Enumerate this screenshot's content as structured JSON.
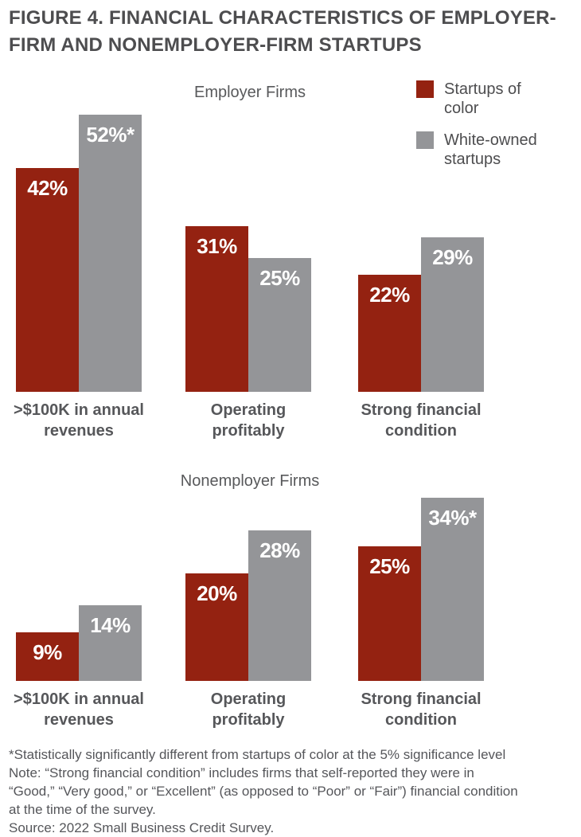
{
  "figure_title": "FIGURE 4. FINANCIAL CHARACTERISTICS OF EMPLOYER-FIRM AND NONEMPLOYER-FIRM STARTUPS",
  "colors": {
    "startups_of_color": "#942211",
    "white_owned_startups": "#949598",
    "title_text": "#4d4d4f",
    "label_text": "#56575a",
    "value_label_text": "#ffffff"
  },
  "legend": {
    "items": [
      {
        "label": "Startups of color",
        "color": "#942211"
      },
      {
        "label": "White-owned startups",
        "color": "#949598"
      }
    ]
  },
  "chart_data": [
    {
      "type": "bar",
      "title": "Employer Firms",
      "categories": [
        ">$100K in annual\nrevenues",
        "Operating\nprofitably",
        "Strong financial\ncondition"
      ],
      "series": [
        {
          "name": "Startups of color",
          "color": "#942211",
          "values": [
            42,
            31,
            22
          ],
          "labels": [
            "42%",
            "31%",
            "22%"
          ]
        },
        {
          "name": "White-owned startups",
          "color": "#949598",
          "values": [
            52,
            25,
            29
          ],
          "labels": [
            "52%*",
            "25%",
            "29%"
          ]
        }
      ],
      "ylim": [
        0,
        55
      ],
      "grid": false,
      "axes_shown": false,
      "legend_position": "top-right",
      "value_labels": "inside-top"
    },
    {
      "type": "bar",
      "title": "Nonemployer Firms",
      "categories": [
        ">$100K in annual\nrevenues",
        "Operating\nprofitably",
        "Strong financial\ncondition"
      ],
      "series": [
        {
          "name": "Startups of color",
          "color": "#942211",
          "values": [
            9,
            20,
            25
          ],
          "labels": [
            "9%",
            "20%",
            "25%"
          ]
        },
        {
          "name": "White-owned startups",
          "color": "#949598",
          "values": [
            14,
            28,
            34
          ],
          "labels": [
            "14%",
            "28%",
            "34%*"
          ]
        }
      ],
      "ylim": [
        0,
        40
      ],
      "grid": false,
      "axes_shown": false,
      "value_labels": "inside-top"
    }
  ],
  "footnotes": [
    "*Statistically significantly different from startups of color at the 5% significance level",
    "Note: “Strong financial condition” includes firms that self-reported they were in",
    "“Good,” “Very good,” or “Excellent” (as opposed to “Poor” or “Fair”) financial condition",
    "at the time of the survey.",
    "Source: 2022 Small Business Credit Survey."
  ]
}
